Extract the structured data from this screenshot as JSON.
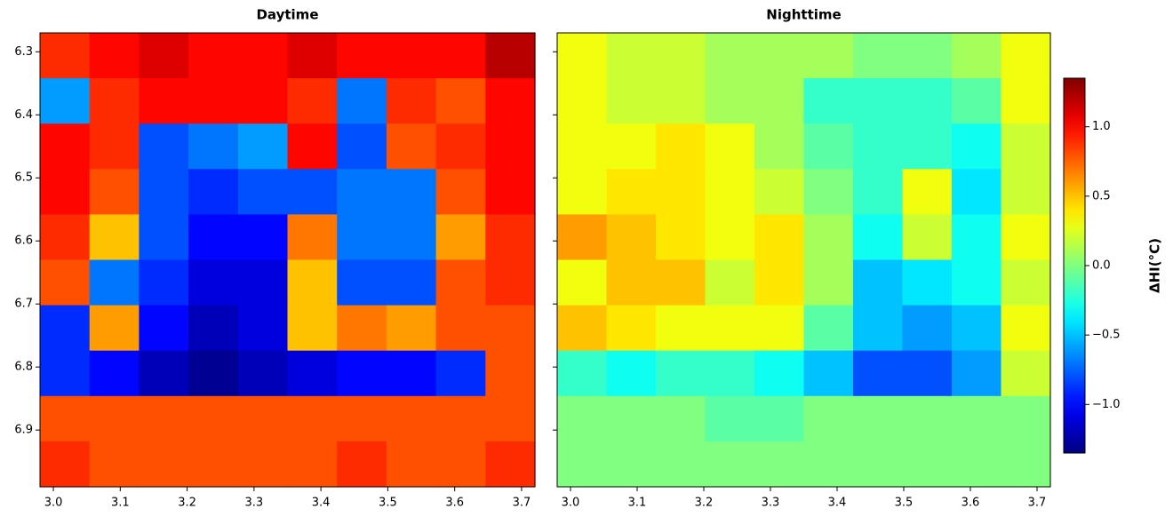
{
  "chart_data": [
    {
      "type": "heatmap",
      "title": "Daytime",
      "x": [
        3.017,
        3.091,
        3.165,
        3.239,
        3.313,
        3.387,
        3.461,
        3.535,
        3.609,
        3.683
      ],
      "y": [
        6.306,
        6.378,
        6.45,
        6.522,
        6.594,
        6.666,
        6.738,
        6.81,
        6.882,
        6.954
      ],
      "values": [
        [
          0.9,
          1.0,
          1.1,
          1.0,
          1.0,
          1.1,
          1.0,
          1.0,
          1.0,
          1.2
        ],
        [
          -0.6,
          0.9,
          1.0,
          1.0,
          1.0,
          0.9,
          -0.7,
          0.9,
          0.8,
          1.0
        ],
        [
          1.0,
          0.9,
          -0.8,
          -0.7,
          -0.6,
          1.0,
          -0.8,
          0.8,
          0.9,
          1.0
        ],
        [
          1.0,
          0.8,
          -0.8,
          -0.9,
          -0.8,
          -0.8,
          -0.7,
          -0.7,
          0.8,
          1.0
        ],
        [
          0.9,
          0.5,
          -0.8,
          -1.0,
          -1.0,
          0.7,
          -0.7,
          -0.7,
          0.6,
          0.9
        ],
        [
          0.8,
          -0.7,
          -0.9,
          -1.1,
          -1.1,
          0.5,
          -0.8,
          -0.8,
          0.8,
          0.9
        ],
        [
          -0.9,
          0.6,
          -1.0,
          -1.2,
          -1.1,
          0.5,
          0.7,
          0.6,
          0.8,
          0.8
        ],
        [
          -0.9,
          -1.0,
          -1.2,
          -1.3,
          -1.2,
          -1.1,
          -1.0,
          -1.0,
          -0.9,
          0.8
        ],
        [
          0.8,
          0.8,
          0.8,
          0.8,
          0.8,
          0.8,
          0.8,
          0.8,
          0.8,
          0.8
        ],
        [
          0.9,
          0.8,
          0.8,
          0.8,
          0.8,
          0.8,
          0.9,
          0.8,
          0.8,
          0.9
        ]
      ],
      "xlim": [
        2.98,
        3.72
      ],
      "ylim": [
        6.27,
        6.99
      ],
      "y_inverted": true,
      "show_ytick_labels": true,
      "xticks": [
        {
          "value": 3,
          "label": "3.0"
        },
        3.1,
        3.2,
        3.3,
        3.4,
        3.5,
        3.6,
        3.7
      ],
      "yticks": [
        6.3,
        6.4,
        6.5,
        6.6,
        6.7,
        6.8,
        6.9
      ]
    },
    {
      "type": "heatmap",
      "title": "Nighttime",
      "x": [
        3.017,
        3.091,
        3.165,
        3.239,
        3.313,
        3.387,
        3.461,
        3.535,
        3.609,
        3.683
      ],
      "y": [
        6.306,
        6.378,
        6.45,
        6.522,
        6.594,
        6.666,
        6.738,
        6.81,
        6.882,
        6.954
      ],
      "values": [
        [
          0.3,
          0.2,
          0.2,
          0.1,
          0.1,
          0.1,
          0.0,
          0.0,
          0.1,
          0.3
        ],
        [
          0.3,
          0.2,
          0.2,
          0.1,
          0.1,
          -0.2,
          -0.2,
          -0.2,
          -0.1,
          0.3
        ],
        [
          0.3,
          0.3,
          0.4,
          0.3,
          0.1,
          -0.1,
          -0.2,
          -0.2,
          -0.3,
          0.2
        ],
        [
          0.3,
          0.4,
          0.4,
          0.3,
          0.2,
          0.0,
          -0.2,
          0.3,
          -0.4,
          0.2
        ],
        [
          0.6,
          0.5,
          0.4,
          0.3,
          0.4,
          0.1,
          -0.3,
          0.2,
          -0.3,
          0.3
        ],
        [
          0.3,
          0.5,
          0.5,
          0.2,
          0.4,
          0.1,
          -0.5,
          -0.4,
          -0.3,
          0.2
        ],
        [
          0.5,
          0.4,
          0.3,
          0.3,
          0.3,
          -0.1,
          -0.5,
          -0.6,
          -0.5,
          0.3
        ],
        [
          -0.2,
          -0.3,
          -0.2,
          -0.2,
          -0.3,
          -0.5,
          -0.8,
          -0.8,
          -0.6,
          0.2
        ],
        [
          0.0,
          0.0,
          0.0,
          -0.1,
          -0.1,
          0.0,
          0.0,
          0.0,
          0.0,
          0.0
        ],
        [
          0.0,
          0.0,
          0.0,
          0.0,
          0.0,
          0.0,
          0.0,
          0.0,
          0.0,
          0.0
        ]
      ],
      "xlim": [
        2.98,
        3.72
      ],
      "ylim": [
        6.27,
        6.99
      ],
      "y_inverted": true,
      "show_ytick_labels": false,
      "xticks": [
        {
          "value": 3,
          "label": "3.0"
        },
        3.1,
        3.2,
        3.3,
        3.4,
        3.5,
        3.6,
        3.7
      ],
      "yticks": [
        6.3,
        6.4,
        6.5,
        6.6,
        6.7,
        6.8,
        6.9
      ]
    }
  ],
  "colorbar": {
    "label": "ΔHI(°C)",
    "colormap": "jet",
    "lim": [
      -1.35,
      1.35
    ],
    "ticks": [
      {
        "value": -1,
        "label": "−1.0"
      },
      {
        "value": -0.5,
        "label": "−0.5"
      },
      {
        "value": 0,
        "label": "0.0"
      },
      {
        "value": 0.5,
        "label": "0.5"
      },
      {
        "value": 1,
        "label": "1.0"
      }
    ]
  }
}
